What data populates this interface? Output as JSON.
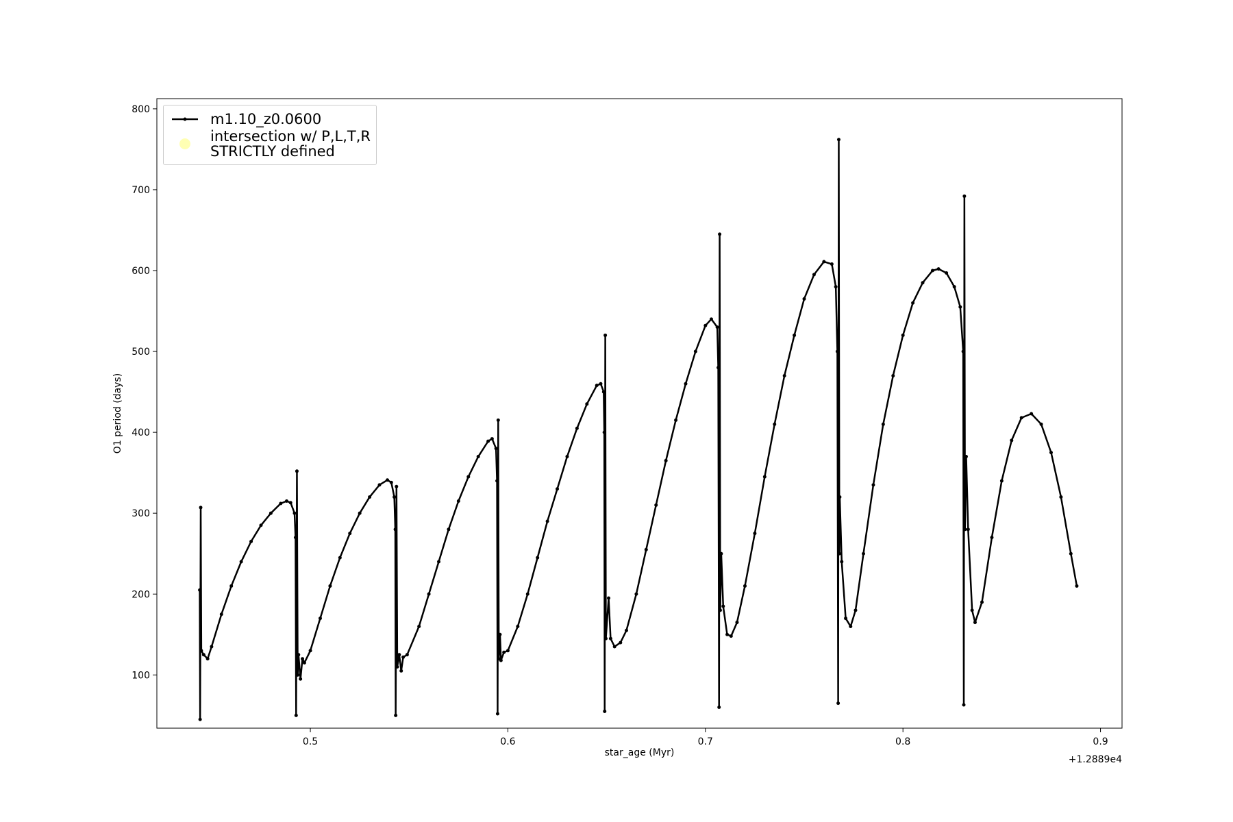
{
  "chart_data": {
    "type": "line",
    "xlabel": "star_age (Myr)",
    "ylabel": "O1 period (days)",
    "x_offset_label": "+1.2889e4",
    "xlim": [
      0.4223,
      0.9109
    ],
    "ylim": [
      34.2,
      812.6
    ],
    "xticks": [
      0.5,
      0.6,
      0.7,
      0.8,
      0.9
    ],
    "yticks": [
      100,
      200,
      300,
      400,
      500,
      600,
      700,
      800
    ],
    "legend": "upper left",
    "series": [
      {
        "name": "m1.10_z0.0600",
        "color": "#000000",
        "marker": "dot",
        "x": [
          0.444,
          0.4442,
          0.4445,
          0.4448,
          0.446,
          0.448,
          0.45,
          0.455,
          0.46,
          0.465,
          0.47,
          0.475,
          0.48,
          0.485,
          0.488,
          0.49,
          0.492,
          0.4925,
          0.4928,
          0.4932,
          0.4936,
          0.494,
          0.495,
          0.496,
          0.497,
          0.5,
          0.505,
          0.51,
          0.515,
          0.52,
          0.525,
          0.53,
          0.535,
          0.539,
          0.541,
          0.5425,
          0.543,
          0.5432,
          0.5436,
          0.544,
          0.545,
          0.546,
          0.547,
          0.549,
          0.555,
          0.56,
          0.565,
          0.57,
          0.575,
          0.58,
          0.585,
          0.59,
          0.592,
          0.594,
          0.5945,
          0.5948,
          0.5951,
          0.5954,
          0.596,
          0.5965,
          0.598,
          0.6,
          0.605,
          0.61,
          0.615,
          0.62,
          0.625,
          0.63,
          0.635,
          0.64,
          0.645,
          0.647,
          0.6485,
          0.6488,
          0.649,
          0.6493,
          0.6496,
          0.651,
          0.652,
          0.654,
          0.657,
          0.66,
          0.665,
          0.67,
          0.675,
          0.68,
          0.685,
          0.69,
          0.695,
          0.7,
          0.703,
          0.706,
          0.7065,
          0.7069,
          0.7072,
          0.7075,
          0.708,
          0.709,
          0.711,
          0.713,
          0.716,
          0.72,
          0.725,
          0.73,
          0.735,
          0.74,
          0.745,
          0.75,
          0.755,
          0.76,
          0.764,
          0.766,
          0.7668,
          0.7672,
          0.7675,
          0.7678,
          0.768,
          0.769,
          0.771,
          0.7735,
          0.776,
          0.78,
          0.785,
          0.79,
          0.795,
          0.8,
          0.805,
          0.81,
          0.815,
          0.818,
          0.822,
          0.826,
          0.829,
          0.8305,
          0.8308,
          0.8311,
          0.8314,
          0.832,
          0.833,
          0.835,
          0.8365,
          0.84,
          0.845,
          0.85,
          0.855,
          0.86,
          0.865,
          0.87,
          0.875,
          0.88,
          0.885,
          0.888
        ],
        "values": [
          205,
          45,
          307,
          130,
          125,
          120,
          135,
          175,
          210,
          240,
          265,
          285,
          300,
          312,
          315,
          313,
          300,
          270,
          50,
          352,
          100,
          125,
          95,
          120,
          115,
          130,
          170,
          210,
          245,
          275,
          300,
          320,
          335,
          341,
          338,
          320,
          280,
          50,
          333,
          110,
          125,
          105,
          122,
          125,
          160,
          200,
          240,
          280,
          315,
          345,
          370,
          389,
          392,
          380,
          340,
          52,
          415,
          120,
          150,
          118,
          128,
          130,
          160,
          200,
          245,
          290,
          330,
          370,
          405,
          435,
          458,
          460,
          450,
          400,
          55,
          520,
          145,
          195,
          145,
          135,
          140,
          155,
          200,
          255,
          310,
          365,
          415,
          460,
          500,
          532,
          540,
          530,
          480,
          60,
          645,
          180,
          250,
          185,
          150,
          148,
          165,
          210,
          275,
          345,
          410,
          470,
          520,
          565,
          595,
          611,
          608,
          580,
          500,
          65,
          762,
          250,
          320,
          240,
          170,
          160,
          180,
          250,
          335,
          410,
          470,
          520,
          560,
          585,
          600,
          602,
          597,
          580,
          555,
          500,
          63,
          692,
          280,
          370,
          280,
          180,
          165,
          190,
          270,
          340,
          390,
          418,
          423,
          410,
          375,
          320,
          250,
          210
        ]
      },
      {
        "name": "intersection w/ P,L,T,R\nSTRICTLY defined",
        "color": "#ffffb3",
        "marker": "circle",
        "x": [],
        "values": []
      }
    ]
  }
}
